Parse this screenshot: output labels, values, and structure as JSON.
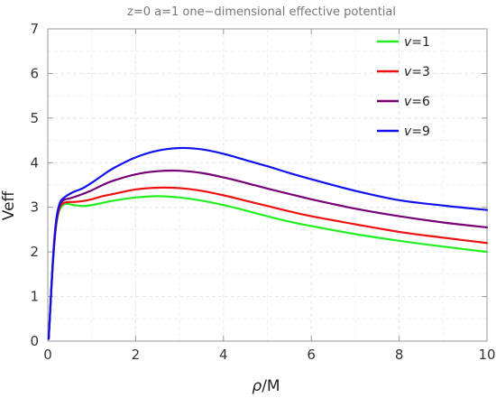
{
  "chart_data": {
    "type": "line",
    "title": "z=0 a=1 one−dimensional effective potential",
    "xlabel_main": "ρ",
    "xlabel_suffix": "/M",
    "ylabel": "Veff",
    "xlim": [
      0,
      10
    ],
    "ylim": [
      0,
      7
    ],
    "x_ticks": [
      0,
      2,
      4,
      6,
      8,
      10
    ],
    "y_ticks": [
      0,
      1,
      2,
      3,
      4,
      5,
      6,
      7
    ],
    "grid": true,
    "legend_position": "top-right",
    "series": [
      {
        "name": "v=1",
        "legend_var": "v",
        "legend_val": "=1",
        "color": "#22ee22",
        "points": [
          [
            0.02,
            0.05
          ],
          [
            0.05,
            0.6
          ],
          [
            0.1,
            1.5
          ],
          [
            0.15,
            2.2
          ],
          [
            0.2,
            2.65
          ],
          [
            0.25,
            2.9
          ],
          [
            0.3,
            3.0
          ],
          [
            0.35,
            3.05
          ],
          [
            0.4,
            3.08
          ],
          [
            0.5,
            3.07
          ],
          [
            0.6,
            3.05
          ],
          [
            0.8,
            3.03
          ],
          [
            1.0,
            3.05
          ],
          [
            1.25,
            3.1
          ],
          [
            1.5,
            3.15
          ],
          [
            2.0,
            3.22
          ],
          [
            2.5,
            3.25
          ],
          [
            3.0,
            3.22
          ],
          [
            3.5,
            3.15
          ],
          [
            4.0,
            3.05
          ],
          [
            4.5,
            2.93
          ],
          [
            5.0,
            2.8
          ],
          [
            5.5,
            2.68
          ],
          [
            6.0,
            2.58
          ],
          [
            7.0,
            2.4
          ],
          [
            8.0,
            2.25
          ],
          [
            9.0,
            2.12
          ],
          [
            10.0,
            2.0
          ]
        ]
      },
      {
        "name": "v=3",
        "legend_var": "v",
        "legend_val": "=3",
        "color": "#ee1111",
        "points": [
          [
            0.02,
            0.05
          ],
          [
            0.05,
            0.6
          ],
          [
            0.1,
            1.5
          ],
          [
            0.15,
            2.2
          ],
          [
            0.2,
            2.68
          ],
          [
            0.25,
            2.93
          ],
          [
            0.3,
            3.05
          ],
          [
            0.35,
            3.09
          ],
          [
            0.4,
            3.11
          ],
          [
            0.5,
            3.12
          ],
          [
            0.6,
            3.12
          ],
          [
            0.8,
            3.14
          ],
          [
            1.0,
            3.18
          ],
          [
            1.25,
            3.25
          ],
          [
            1.5,
            3.3
          ],
          [
            2.0,
            3.4
          ],
          [
            2.5,
            3.44
          ],
          [
            3.0,
            3.43
          ],
          [
            3.5,
            3.37
          ],
          [
            4.0,
            3.27
          ],
          [
            4.5,
            3.15
          ],
          [
            5.0,
            3.03
          ],
          [
            5.5,
            2.91
          ],
          [
            6.0,
            2.8
          ],
          [
            7.0,
            2.62
          ],
          [
            8.0,
            2.45
          ],
          [
            9.0,
            2.32
          ],
          [
            10.0,
            2.2
          ]
        ]
      },
      {
        "name": "v=6",
        "legend_var": "v",
        "legend_val": "=6",
        "color": "#770077",
        "points": [
          [
            0.02,
            0.05
          ],
          [
            0.05,
            0.6
          ],
          [
            0.1,
            1.5
          ],
          [
            0.15,
            2.25
          ],
          [
            0.2,
            2.72
          ],
          [
            0.25,
            2.98
          ],
          [
            0.3,
            3.1
          ],
          [
            0.35,
            3.15
          ],
          [
            0.4,
            3.18
          ],
          [
            0.5,
            3.2
          ],
          [
            0.6,
            3.23
          ],
          [
            0.8,
            3.3
          ],
          [
            1.0,
            3.38
          ],
          [
            1.25,
            3.5
          ],
          [
            1.5,
            3.6
          ],
          [
            2.0,
            3.74
          ],
          [
            2.5,
            3.81
          ],
          [
            3.0,
            3.82
          ],
          [
            3.5,
            3.77
          ],
          [
            4.0,
            3.67
          ],
          [
            4.5,
            3.55
          ],
          [
            5.0,
            3.42
          ],
          [
            5.5,
            3.3
          ],
          [
            6.0,
            3.18
          ],
          [
            7.0,
            2.97
          ],
          [
            8.0,
            2.8
          ],
          [
            9.0,
            2.66
          ],
          [
            10.0,
            2.55
          ]
        ]
      },
      {
        "name": "v=9",
        "legend_var": "v",
        "legend_val": "=9",
        "color": "#1111ee",
        "points": [
          [
            0.02,
            0.05
          ],
          [
            0.05,
            0.6
          ],
          [
            0.1,
            1.55
          ],
          [
            0.15,
            2.3
          ],
          [
            0.2,
            2.78
          ],
          [
            0.25,
            3.02
          ],
          [
            0.3,
            3.15
          ],
          [
            0.35,
            3.2
          ],
          [
            0.4,
            3.24
          ],
          [
            0.5,
            3.3
          ],
          [
            0.6,
            3.35
          ],
          [
            0.8,
            3.43
          ],
          [
            1.0,
            3.55
          ],
          [
            1.25,
            3.72
          ],
          [
            1.5,
            3.88
          ],
          [
            2.0,
            4.12
          ],
          [
            2.5,
            4.27
          ],
          [
            3.0,
            4.33
          ],
          [
            3.5,
            4.3
          ],
          [
            4.0,
            4.2
          ],
          [
            4.5,
            4.06
          ],
          [
            5.0,
            3.92
          ],
          [
            5.5,
            3.77
          ],
          [
            6.0,
            3.63
          ],
          [
            7.0,
            3.37
          ],
          [
            8.0,
            3.16
          ],
          [
            9.0,
            3.04
          ],
          [
            10.0,
            2.94
          ]
        ]
      }
    ]
  }
}
